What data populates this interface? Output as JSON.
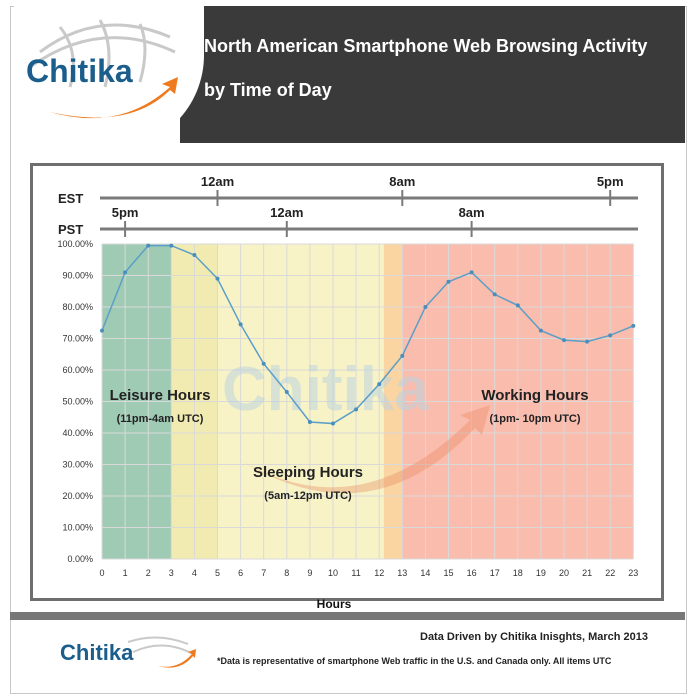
{
  "header": {
    "logo_text": "Chitika",
    "title_line1": "North American Smartphone Web Browsing Activity",
    "title_line2": "by Time of Day"
  },
  "chart_data": {
    "type": "line",
    "title": "North American Smartphone Web Browsing Activity by Time of Day",
    "xlabel": "Hours",
    "ylabel": "",
    "x": [
      0,
      1,
      2,
      3,
      4,
      5,
      6,
      7,
      8,
      9,
      10,
      11,
      12,
      13,
      14,
      15,
      16,
      17,
      18,
      19,
      20,
      21,
      22,
      23
    ],
    "series": [
      {
        "values": [
          72.5,
          91,
          99.5,
          99.5,
          96.5,
          89,
          74.5,
          62,
          53,
          43.5,
          43,
          47.5,
          55.5,
          64.5,
          80,
          88,
          91,
          84,
          80.5,
          72.5,
          69.5,
          69,
          71,
          74
        ]
      }
    ],
    "ylim": [
      0,
      100
    ],
    "yticks": [
      "0.00%",
      "10.00%",
      "20.00%",
      "30.00%",
      "40.00%",
      "50.00%",
      "60.00%",
      "70.00%",
      "80.00%",
      "90.00%",
      "100.00%"
    ],
    "grid": true,
    "timezone_axes": {
      "est": {
        "label": "EST",
        "ticks": [
          {
            "hour": 5,
            "label": "12am"
          },
          {
            "hour": 13,
            "label": "8am"
          },
          {
            "hour": 22,
            "label": "5pm"
          }
        ]
      },
      "pst": {
        "label": "PST",
        "ticks": [
          {
            "hour": 1,
            "label": "5pm"
          },
          {
            "hour": 8,
            "label": "12am"
          },
          {
            "hour": 16,
            "label": "8am"
          }
        ]
      }
    },
    "regions": [
      {
        "name": "Leisure Hours",
        "range_label": "(11pm-4am UTC)",
        "from": 0,
        "to": 3,
        "color": "#7fb89b"
      },
      {
        "name": "Sleeping Hours",
        "range_label": "(5am-12pm UTC)",
        "from": 3,
        "to": 12.2,
        "color": "#f6efb4"
      },
      {
        "name": "Working Hours",
        "range_label": "(1pm- 10pm UTC)",
        "from": 13,
        "to": 23,
        "color": "#f8a592"
      }
    ]
  },
  "watermark": "Chitika",
  "footer": {
    "logo_text": "Chitika",
    "credit": "Data Driven by Chitika Inisghts, March 2013",
    "note": "*Data is representative of smartphone Web traffic in the U.S. and Canada only. All items UTC"
  }
}
